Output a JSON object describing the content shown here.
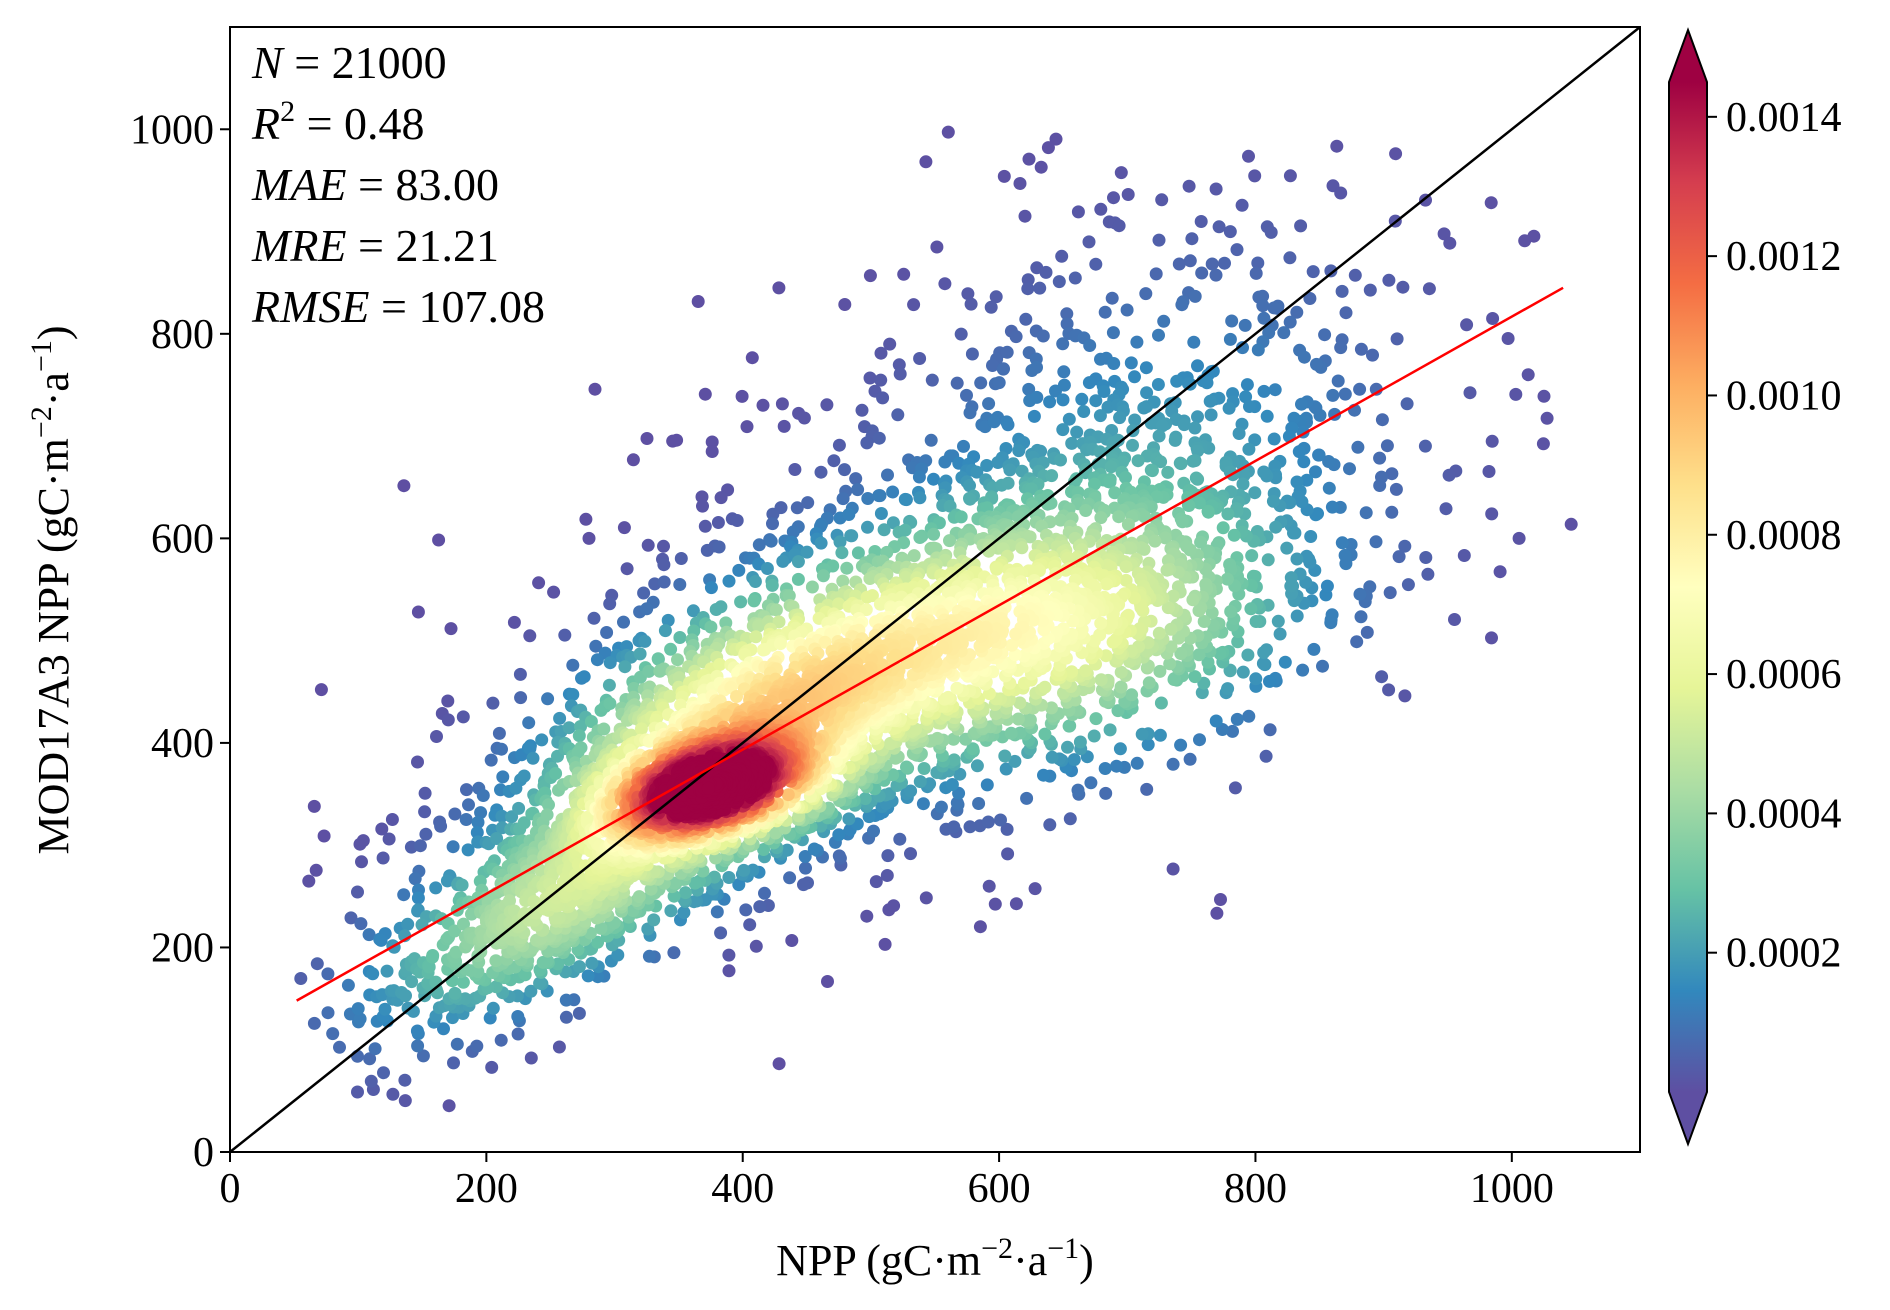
{
  "chart_data": {
    "type": "scatter",
    "subtype": "density-colored scatter",
    "title": "",
    "xlabel": {
      "main": "NPP (gC·m",
      "exp1": "−2",
      "mid": "·a",
      "exp2": "−1",
      "end": ")"
    },
    "ylabel": {
      "main": "MOD17A3 NPP (gC·m",
      "exp1": "−2",
      "mid": "·a",
      "exp2": "−1",
      "end": ")"
    },
    "xlim": [
      0,
      1100
    ],
    "ylim": [
      0,
      1100
    ],
    "xticks": [
      "0",
      "200",
      "400",
      "600",
      "800",
      "1000"
    ],
    "yticks": [
      "0",
      "200",
      "400",
      "600",
      "800",
      "1000"
    ],
    "stats": [
      {
        "var": "N",
        "sup": "",
        "value": "21000"
      },
      {
        "var": "R",
        "sup": "2",
        "value": "0.48"
      },
      {
        "var": "MAE",
        "sup": "",
        "value": "83.00"
      },
      {
        "var": "MRE",
        "sup": "",
        "value": "21.21"
      },
      {
        "var": "RMSE",
        "sup": "",
        "value": "107.08"
      }
    ],
    "lines": [
      {
        "name": "1:1 line",
        "color": "#000000",
        "x": [
          0,
          1100
        ],
        "y": [
          0,
          1100
        ]
      },
      {
        "name": "fit line",
        "color": "#ff0000",
        "x": [
          52,
          1040
        ],
        "y": [
          148,
          845
        ]
      }
    ],
    "density_kernels": [
      {
        "cx": 375,
        "cy": 355,
        "sx": 48,
        "sy": 30,
        "rho": 0.35,
        "weight": 1.0
      },
      {
        "cx": 420,
        "cy": 430,
        "sx": 95,
        "sy": 75,
        "rho": 0.5,
        "weight": 0.55
      },
      {
        "cx": 620,
        "cy": 510,
        "sx": 110,
        "sy": 70,
        "rho": 0.2,
        "weight": 0.35
      },
      {
        "cx": 260,
        "cy": 250,
        "sx": 90,
        "sy": 75,
        "rho": 0.7,
        "weight": 0.3
      },
      {
        "cx": 700,
        "cy": 620,
        "sx": 120,
        "sy": 140,
        "rho": 0.3,
        "weight": 0.12
      }
    ],
    "colorbar": {
      "colormap": "Spectral_r",
      "min": 0.0,
      "max": 0.00145,
      "extend": "both",
      "ticks": [
        {
          "value": 0.0002,
          "label": "0.0002"
        },
        {
          "value": 0.0004,
          "label": "0.0004"
        },
        {
          "value": 0.0006,
          "label": "0.0006"
        },
        {
          "value": 0.0008,
          "label": "0.0008"
        },
        {
          "value": 0.001,
          "label": "0.0010"
        },
        {
          "value": 0.0012,
          "label": "0.0012"
        },
        {
          "value": 0.0014,
          "label": "0.0014"
        }
      ],
      "stops": [
        "#5e4fa2",
        "#3288bd",
        "#66c2a5",
        "#abdda4",
        "#e6f598",
        "#ffffbf",
        "#fee08b",
        "#fdae61",
        "#f46d43",
        "#d53e4f",
        "#9e0142"
      ]
    }
  }
}
